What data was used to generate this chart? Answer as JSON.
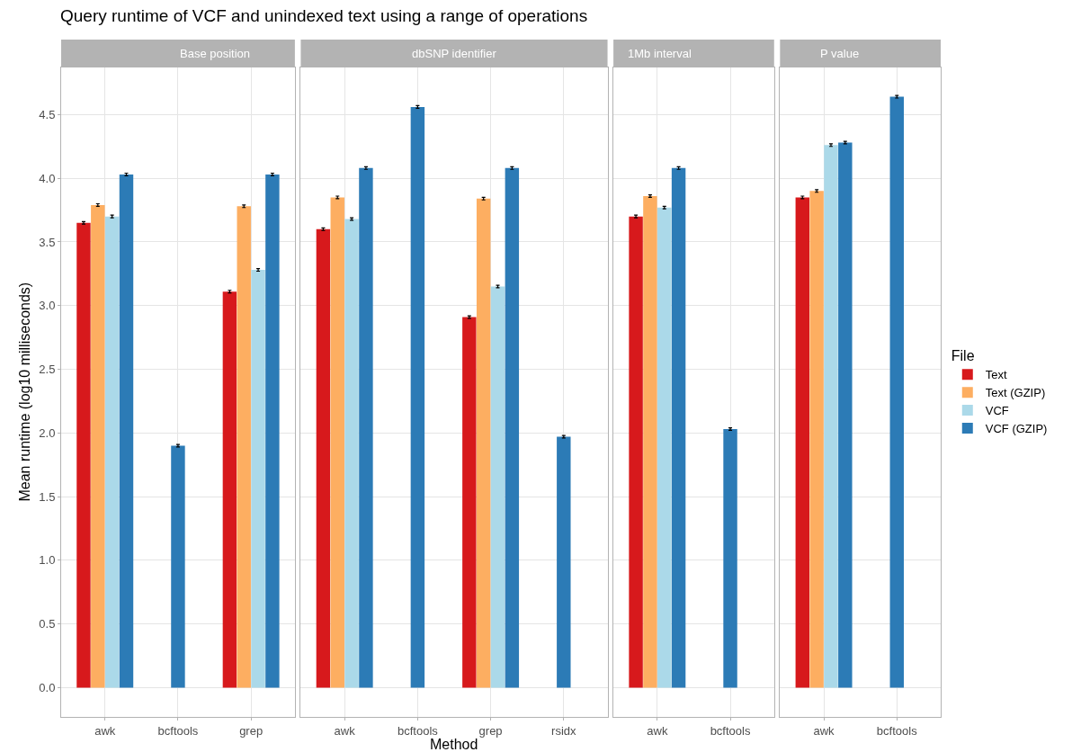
{
  "chart_data": [
    {
      "type": "bar",
      "title": "Query runtime of VCF and unindexed text using a range of operations",
      "subtitle": "Base position",
      "ylabel": "Mean runtime (log10 milliseconds)",
      "categories": [
        "awk",
        "bcftools",
        "grep"
      ],
      "legend_title": "File",
      "legend": "right",
      "grid": true,
      "ylim": [
        -0.23,
        4.87
      ],
      "yticks": [
        {
          "value": 0.0,
          "label": "0.0"
        },
        {
          "value": 0.5,
          "label": "0.5"
        },
        {
          "value": 1.0,
          "label": "1.0"
        },
        {
          "value": 1.5,
          "label": "1.5"
        },
        {
          "value": 2.0,
          "label": "2.0"
        },
        {
          "value": 2.5,
          "label": "2.5"
        },
        {
          "value": 3.0,
          "label": "3.0"
        },
        {
          "value": 3.5,
          "label": "3.5"
        },
        {
          "value": 4.0,
          "label": "4.0"
        },
        {
          "value": 4.5,
          "label": "4.5"
        }
      ],
      "series": [
        {
          "name": "Text",
          "color": "#d7191c",
          "values": [
            3.65,
            null,
            3.11
          ],
          "errors": [
            0.01,
            null,
            0.01
          ]
        },
        {
          "name": "Text (GZIP)",
          "color": "#fdae61",
          "values": [
            3.79,
            null,
            3.78
          ],
          "errors": [
            0.01,
            null,
            0.01
          ]
        },
        {
          "name": "VCF",
          "color": "#abd9e9",
          "values": [
            3.7,
            null,
            3.28
          ],
          "errors": [
            0.01,
            null,
            0.01
          ]
        },
        {
          "name": "VCF (GZIP)",
          "color": "#2c7bb6",
          "values": [
            4.03,
            1.9,
            4.03
          ],
          "errors": [
            0.01,
            0.01,
            0.01
          ]
        }
      ]
    },
    {
      "type": "bar",
      "subtitle": "dbSNP identifier",
      "xlabel": "Method",
      "categories": [
        "awk",
        "bcftools",
        "grep",
        "rsidx"
      ],
      "tick_labels": "x",
      "grid": true,
      "ylim": [
        -0.23,
        4.87
      ],
      "series": [
        {
          "color": "#d7191c",
          "values": [
            3.6,
            null,
            2.91,
            null
          ],
          "errors": [
            0.01,
            null,
            0.01,
            null
          ]
        },
        {
          "color": "#fdae61",
          "values": [
            3.85,
            null,
            3.84,
            null
          ],
          "errors": [
            0.01,
            null,
            0.01,
            null
          ]
        },
        {
          "color": "#abd9e9",
          "values": [
            3.68,
            null,
            3.15,
            null
          ],
          "errors": [
            0.01,
            null,
            0.01,
            null
          ]
        },
        {
          "color": "#2c7bb6",
          "values": [
            4.08,
            4.56,
            4.08,
            1.97
          ],
          "errors": [
            0.01,
            0.01,
            0.01,
            0.01
          ]
        }
      ]
    },
    {
      "type": "bar",
      "subtitle": "1Mb interval",
      "categories": [
        "awk",
        "bcftools"
      ],
      "tick_labels": "x",
      "grid": true,
      "ylim": [
        -0.23,
        4.87
      ],
      "series": [
        {
          "color": "#d7191c",
          "values": [
            3.7,
            null
          ],
          "errors": [
            0.01,
            null
          ]
        },
        {
          "color": "#fdae61",
          "values": [
            3.86,
            null
          ],
          "errors": [
            0.01,
            null
          ]
        },
        {
          "color": "#abd9e9",
          "values": [
            3.77,
            null
          ],
          "errors": [
            0.01,
            null
          ]
        },
        {
          "color": "#2c7bb6",
          "values": [
            4.08,
            2.03
          ],
          "errors": [
            0.01,
            0.01
          ]
        }
      ]
    },
    {
      "type": "bar",
      "subtitle": "P value",
      "categories": [
        "awk",
        "bcftools"
      ],
      "tick_labels": "x",
      "grid": true,
      "ylim": [
        -0.23,
        4.87
      ],
      "series": [
        {
          "color": "#d7191c",
          "values": [
            3.85,
            null
          ],
          "errors": [
            0.01,
            null
          ]
        },
        {
          "color": "#fdae61",
          "values": [
            3.9,
            null
          ],
          "errors": [
            0.01,
            null
          ]
        },
        {
          "color": "#abd9e9",
          "values": [
            4.26,
            null
          ],
          "errors": [
            0.01,
            null
          ]
        },
        {
          "color": "#2c7bb6",
          "values": [
            4.28,
            4.64
          ],
          "errors": [
            0.01,
            0.01
          ]
        }
      ]
    }
  ]
}
